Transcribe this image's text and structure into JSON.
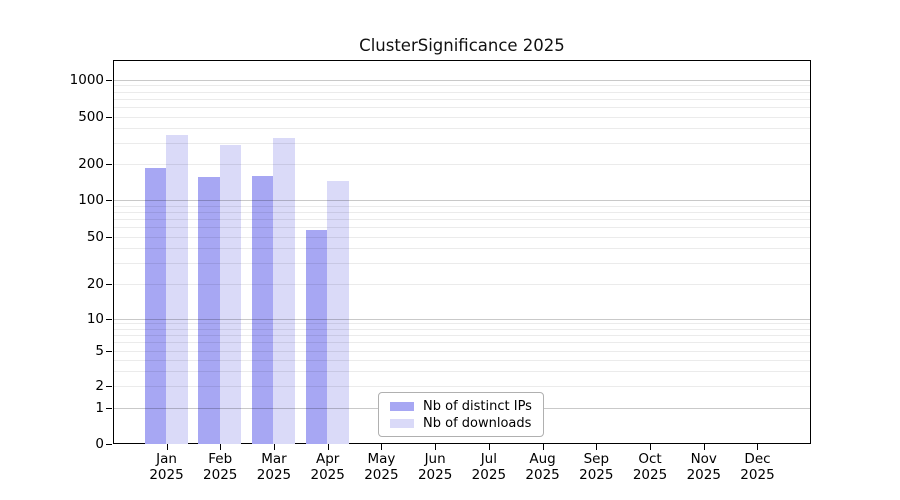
{
  "title": "ClusterSignificance 2025",
  "chart_data": {
    "type": "bar",
    "title": "ClusterSignificance 2025",
    "x_categories": [
      {
        "month": "Jan",
        "year": "2025"
      },
      {
        "month": "Feb",
        "year": "2025"
      },
      {
        "month": "Mar",
        "year": "2025"
      },
      {
        "month": "Apr",
        "year": "2025"
      },
      {
        "month": "May",
        "year": "2025"
      },
      {
        "month": "Jun",
        "year": "2025"
      },
      {
        "month": "Jul",
        "year": "2025"
      },
      {
        "month": "Aug",
        "year": "2025"
      },
      {
        "month": "Sep",
        "year": "2025"
      },
      {
        "month": "Oct",
        "year": "2025"
      },
      {
        "month": "Nov",
        "year": "2025"
      },
      {
        "month": "Dec",
        "year": "2025"
      }
    ],
    "series": [
      {
        "name": "Nb of distinct IPs",
        "color": "#a7a7f3",
        "values": [
          185,
          155,
          160,
          57,
          null,
          null,
          null,
          null,
          null,
          null,
          null,
          null
        ]
      },
      {
        "name": "Nb of downloads",
        "color": "#dadaf8",
        "values": [
          350,
          290,
          330,
          145,
          null,
          null,
          null,
          null,
          null,
          null,
          null,
          null
        ]
      }
    ],
    "yscale": "symlog",
    "yticks": [
      0,
      1,
      2,
      5,
      10,
      20,
      50,
      100,
      200,
      500,
      1000
    ],
    "ylim": [
      0,
      1500
    ],
    "xlabel": "",
    "ylabel": "",
    "grid": "horizontal, major and log-minor lines",
    "legend_position": "inside bottom-center"
  },
  "colors": {
    "bar_distinct_ips": "#a7a7f3",
    "bar_downloads": "#dadaf8",
    "grid_major": "#c9c9c9",
    "grid_minor": "#ebebeb",
    "axis": "#000000",
    "background": "#ffffff",
    "text": "#000000"
  }
}
